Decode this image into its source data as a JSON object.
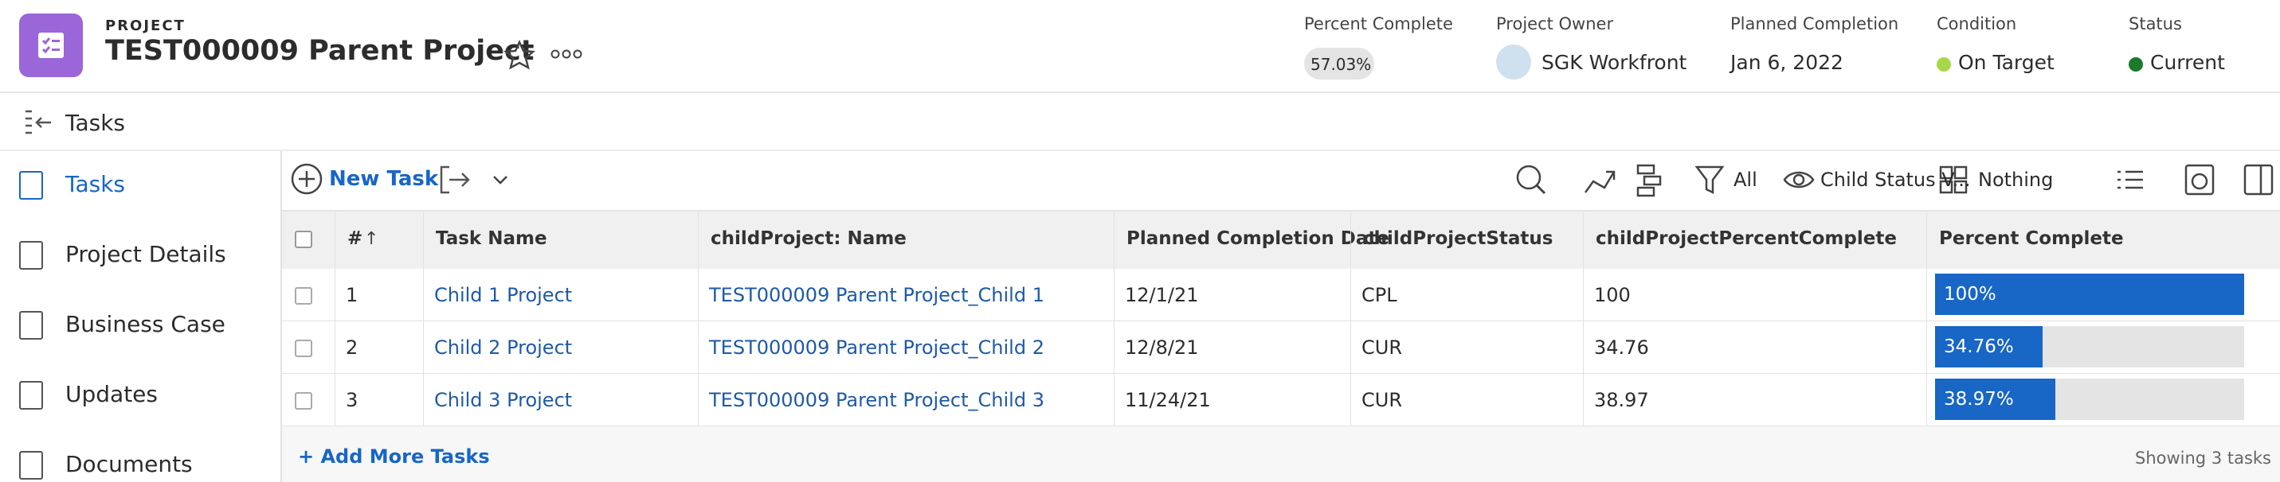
{
  "header": {
    "label": "PROJECT",
    "title": "TEST000009 Parent Project",
    "fields": [
      {
        "label": "Percent Complete",
        "value": "57.03%"
      },
      {
        "label": "Project Owner",
        "value": "SGK Workfront"
      },
      {
        "label": "Planned Completion",
        "value": "Jan 6, 2022"
      },
      {
        "label": "Condition",
        "value": "On Target"
      },
      {
        "label": "Status",
        "value": "Current"
      }
    ]
  },
  "section_title": "Tasks",
  "nav": [
    "Tasks",
    "Project Details",
    "Business Case",
    "Updates",
    "Documents"
  ],
  "toolbar": {
    "new_task": "New Task",
    "filter": "All",
    "view": "Child Status V...",
    "grouping": "Nothing"
  },
  "table": {
    "columns": [
      "#",
      "Task Name",
      "childProject: Name",
      "Planned Completion Date",
      "childProjectStatus",
      "childProjectPercentComplete",
      "Percent Complete"
    ],
    "rows": [
      [
        "1",
        "Child 1 Project",
        "TEST000009 Parent Project_Child 1",
        "12/1/21",
        "CPL",
        "100",
        {
          "value": 100,
          "label": "100%"
        }
      ],
      [
        "2",
        "Child 2 Project",
        "TEST000009 Parent Project_Child 2",
        "12/8/21",
        "CUR",
        "34.76",
        {
          "value": 34.76,
          "label": "34.76%"
        }
      ],
      [
        "3",
        "Child 3 Project",
        "TEST000009 Parent Project_Child 3",
        "11/24/21",
        "CUR",
        "38.97",
        {
          "value": 38.97,
          "label": "38.97%"
        }
      ]
    ]
  },
  "footer": {
    "add": "+ Add More Tasks",
    "count": "Showing 3 tasks"
  }
}
